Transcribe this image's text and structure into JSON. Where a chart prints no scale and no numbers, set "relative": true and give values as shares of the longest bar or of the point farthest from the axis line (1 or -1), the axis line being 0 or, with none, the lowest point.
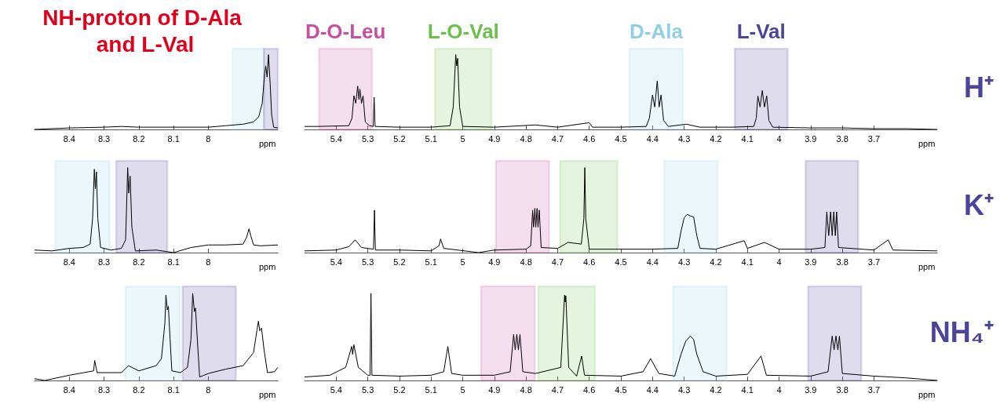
{
  "chart_data": [
    {
      "type": "line",
      "title": "NH-proton of D-Ala and L-Val",
      "xlabel": "ppm",
      "relative": true,
      "xlim": [
        8.5,
        7.8
      ],
      "xticks": [
        8.4,
        8.3,
        8.2,
        8.1,
        8.0
      ],
      "series": [
        {
          "color": "#000000",
          "x": [
            8.5,
            8.4,
            8.3,
            8.25,
            8.2,
            8.1,
            8.0,
            7.95,
            7.9,
            7.87,
            7.855,
            7.845,
            7.838,
            7.835,
            7.831,
            7.827,
            7.822,
            7.818,
            7.812,
            7.8
          ],
          "values": [
            0.0,
            0.02,
            0.03,
            0.04,
            0.03,
            0.03,
            0.03,
            0.05,
            0.07,
            0.1,
            0.17,
            0.35,
            0.75,
            0.85,
            0.7,
            1.0,
            0.6,
            0.2,
            0.03,
            0.02
          ]
        }
      ],
      "bands": [
        {
          "axis": "x",
          "from": 7.93,
          "to": 7.84,
          "color": "#8fd0e6"
        },
        {
          "axis": "x",
          "from": 7.84,
          "to": 7.8,
          "color": "#4b459a"
        }
      ]
    },
    {
      "type": "line",
      "xlabel": "ppm",
      "relative": true,
      "xlim": [
        5.5,
        3.5
      ],
      "xticks": [
        5.4,
        5.3,
        5.2,
        5.1,
        5.0,
        4.9,
        4.8,
        4.7,
        4.6,
        4.5,
        4.4,
        4.3,
        4.2,
        4.1,
        4.0,
        3.9,
        3.8,
        3.7
      ],
      "series": [
        {
          "color": "#000000",
          "x": [
            5.5,
            5.46,
            5.36,
            5.35,
            5.344,
            5.338,
            5.332,
            5.328,
            5.325,
            5.32,
            5.315,
            5.308,
            5.295,
            5.283,
            5.28,
            5.277,
            5.2,
            5.1,
            5.04,
            5.03,
            5.022,
            5.019,
            5.016,
            5.01,
            5.0,
            4.9,
            4.77,
            4.7,
            4.6,
            4.59,
            4.5,
            4.42,
            4.41,
            4.4,
            4.393,
            4.385,
            4.379,
            4.373,
            4.365,
            4.35,
            4.293,
            4.25,
            4.15,
            4.08,
            4.072,
            4.067,
            4.06,
            4.053,
            4.046,
            4.039,
            4.032,
            4.02,
            3.9,
            3.8,
            3.7,
            3.6,
            3.5
          ],
          "values": [
            0.04,
            0.04,
            0.05,
            0.15,
            0.45,
            0.35,
            0.58,
            0.4,
            0.54,
            0.35,
            0.45,
            0.1,
            0.05,
            0.04,
            0.43,
            0.04,
            0.03,
            0.03,
            0.05,
            0.3,
            1.0,
            0.85,
            0.95,
            0.3,
            0.04,
            0.03,
            0.06,
            0.03,
            0.09,
            0.03,
            0.03,
            0.04,
            0.15,
            0.46,
            0.3,
            0.65,
            0.3,
            0.46,
            0.12,
            0.04,
            0.07,
            0.03,
            0.03,
            0.04,
            0.15,
            0.45,
            0.3,
            0.52,
            0.3,
            0.45,
            0.12,
            0.03,
            0.02,
            0.02,
            0.01,
            0.01,
            0.0
          ]
        }
      ],
      "bands": [
        {
          "axis": "x",
          "from": 5.454,
          "to": 5.287,
          "color": "#c8509e",
          "label": "D-O-Leu"
        },
        {
          "axis": "x",
          "from": 5.087,
          "to": 4.909,
          "color": "#6cc04a",
          "label": "L-O-Val"
        },
        {
          "axis": "x",
          "from": 4.473,
          "to": 4.304,
          "color": "#8fd0e6",
          "label": "D-Ala"
        },
        {
          "axis": "x",
          "from": 4.14,
          "to": 3.973,
          "color": "#4b459a",
          "label": "L-Val"
        }
      ],
      "annotations": [
        "H⁺"
      ]
    },
    {
      "type": "line",
      "xlabel": "ppm",
      "relative": true,
      "xlim": [
        8.5,
        7.8
      ],
      "xticks": [
        8.4,
        8.3,
        8.2,
        8.1,
        8.0
      ],
      "series": [
        {
          "color": "#000000",
          "x": [
            8.5,
            8.45,
            8.4,
            8.36,
            8.34,
            8.333,
            8.328,
            8.325,
            8.322,
            8.318,
            8.31,
            8.28,
            8.25,
            8.238,
            8.232,
            8.229,
            8.225,
            8.22,
            8.21,
            8.15,
            8.1,
            8.05,
            8.0,
            7.95,
            7.9,
            7.89,
            7.883,
            7.878,
            7.87,
            7.85,
            7.8
          ],
          "values": [
            0.03,
            0.02,
            0.05,
            0.06,
            0.1,
            0.4,
            0.98,
            0.75,
            0.95,
            0.4,
            0.06,
            0.03,
            0.05,
            0.15,
            1.0,
            0.7,
            0.9,
            0.3,
            0.02,
            0.03,
            0.0,
            0.06,
            0.09,
            0.09,
            0.1,
            0.18,
            0.28,
            0.2,
            0.09,
            0.08,
            0.09
          ]
        }
      ],
      "bands": [
        {
          "axis": "x",
          "from": 8.44,
          "to": 8.284,
          "color": "#8fd0e6"
        },
        {
          "axis": "x",
          "from": 8.265,
          "to": 8.118,
          "color": "#4b459a"
        }
      ]
    },
    {
      "type": "line",
      "xlabel": "ppm",
      "relative": true,
      "xlim": [
        5.5,
        3.5
      ],
      "xticks": [
        5.4,
        5.3,
        5.2,
        5.1,
        5.0,
        4.9,
        4.8,
        4.7,
        4.6,
        4.5,
        4.4,
        4.3,
        4.2,
        4.1,
        4.0,
        3.9,
        3.8,
        3.7
      ],
      "series": [
        {
          "color": "#000000",
          "x": [
            5.5,
            5.4,
            5.36,
            5.34,
            5.32,
            5.282,
            5.279,
            5.276,
            5.2,
            5.1,
            5.075,
            5.07,
            5.06,
            4.95,
            4.9,
            4.8,
            4.785,
            4.779,
            4.776,
            4.772,
            4.769,
            4.765,
            4.762,
            4.758,
            4.752,
            4.7,
            4.667,
            4.625,
            4.617,
            4.614,
            4.611,
            4.6,
            4.5,
            4.4,
            4.32,
            4.31,
            4.3,
            4.29,
            4.28,
            4.27,
            4.26,
            4.25,
            4.2,
            4.11,
            4.1,
            4.046,
            4.0,
            3.9,
            3.855,
            3.849,
            3.843,
            3.837,
            3.832,
            3.827,
            3.822,
            3.818,
            3.812,
            3.7,
            3.655,
            3.64,
            3.5
          ],
          "values": [
            0.02,
            0.03,
            0.07,
            0.15,
            0.06,
            0.04,
            0.5,
            0.03,
            0.03,
            0.02,
            0.08,
            0.16,
            0.05,
            0.0,
            0.03,
            0.04,
            0.08,
            0.5,
            0.3,
            0.52,
            0.3,
            0.52,
            0.3,
            0.5,
            0.06,
            0.05,
            0.12,
            0.1,
            0.4,
            1.0,
            0.4,
            0.04,
            0.04,
            0.04,
            0.05,
            0.25,
            0.41,
            0.45,
            0.43,
            0.42,
            0.2,
            0.05,
            0.04,
            0.14,
            0.05,
            0.12,
            0.04,
            0.04,
            0.06,
            0.48,
            0.2,
            0.48,
            0.2,
            0.48,
            0.2,
            0.48,
            0.06,
            0.03,
            0.15,
            0.03,
            0.02
          ]
        }
      ],
      "bands": [
        {
          "axis": "x",
          "from": 4.895,
          "to": 4.727,
          "color": "#c8509e"
        },
        {
          "axis": "x",
          "from": 4.692,
          "to": 4.511,
          "color": "#6cc04a"
        },
        {
          "axis": "x",
          "from": 4.363,
          "to": 4.194,
          "color": "#8fd0e6"
        },
        {
          "axis": "x",
          "from": 3.916,
          "to": 3.75,
          "color": "#4b459a"
        }
      ],
      "annotations": [
        "K⁺"
      ]
    },
    {
      "type": "line",
      "xlabel": "ppm",
      "relative": true,
      "xlim": [
        8.5,
        7.8
      ],
      "xticks": [
        8.4,
        8.3,
        8.2,
        8.1,
        8.0
      ],
      "series": [
        {
          "color": "#000000",
          "x": [
            8.5,
            8.47,
            8.4,
            8.33,
            8.327,
            8.32,
            8.25,
            8.23,
            8.2,
            8.15,
            8.135,
            8.125,
            8.122,
            8.118,
            8.115,
            8.11,
            8.105,
            8.08,
            8.06,
            8.05,
            8.045,
            8.04,
            8.037,
            8.03,
            8.025,
            8.0,
            7.95,
            7.9,
            7.87,
            7.86,
            7.856,
            7.852,
            7.847,
            7.84,
            7.83,
            7.81,
            7.8
          ],
          "values": [
            0.02,
            0.0,
            0.06,
            0.11,
            0.23,
            0.09,
            0.09,
            0.17,
            0.11,
            0.17,
            0.25,
            0.66,
            0.98,
            0.81,
            0.85,
            0.47,
            0.11,
            0.09,
            0.15,
            0.47,
            1.0,
            0.79,
            0.83,
            0.36,
            0.04,
            0.08,
            0.13,
            0.17,
            0.32,
            0.58,
            0.68,
            0.57,
            0.6,
            0.36,
            0.09,
            0.1,
            0.15
          ]
        }
      ],
      "bands": [
        {
          "axis": "x",
          "from": 8.238,
          "to": 8.082,
          "color": "#8fd0e6"
        },
        {
          "axis": "x",
          "from": 8.074,
          "to": 7.921,
          "color": "#4b459a"
        }
      ]
    },
    {
      "type": "line",
      "xlabel": "ppm",
      "relative": true,
      "xlim": [
        5.5,
        3.5
      ],
      "xticks": [
        5.4,
        5.3,
        5.2,
        5.1,
        5.0,
        4.9,
        4.8,
        4.7,
        4.6,
        4.5,
        4.4,
        4.3,
        4.2,
        4.1,
        4.0,
        3.9,
        3.8,
        3.7
      ],
      "series": [
        {
          "color": "#000000",
          "x": [
            5.5,
            5.42,
            5.37,
            5.351,
            5.348,
            5.344,
            5.33,
            5.3,
            5.293,
            5.29,
            5.287,
            5.2,
            5.1,
            5.06,
            5.047,
            5.035,
            5.0,
            4.9,
            4.85,
            4.839,
            4.834,
            4.829,
            4.824,
            4.819,
            4.81,
            4.77,
            4.69,
            4.678,
            4.676,
            4.674,
            4.665,
            4.64,
            4.624,
            4.615,
            4.5,
            4.43,
            4.406,
            4.38,
            4.33,
            4.31,
            4.295,
            4.28,
            4.27,
            4.26,
            4.24,
            4.2,
            4.1,
            4.057,
            4.04,
            3.9,
            3.845,
            3.832,
            3.826,
            3.82,
            3.814,
            3.809,
            3.8,
            3.7,
            3.6,
            3.5
          ],
          "values": [
            0.04,
            0.06,
            0.15,
            0.39,
            0.3,
            0.41,
            0.15,
            0.06,
            0.06,
            1.0,
            0.06,
            0.05,
            0.06,
            0.1,
            0.39,
            0.08,
            0.06,
            0.06,
            0.1,
            0.53,
            0.35,
            0.53,
            0.35,
            0.53,
            0.1,
            0.08,
            0.15,
            0.98,
            0.9,
            0.97,
            0.15,
            0.05,
            0.28,
            0.06,
            0.05,
            0.1,
            0.25,
            0.08,
            0.05,
            0.3,
            0.45,
            0.51,
            0.47,
            0.3,
            0.1,
            0.05,
            0.07,
            0.28,
            0.06,
            0.05,
            0.1,
            0.51,
            0.35,
            0.51,
            0.35,
            0.51,
            0.08,
            0.05,
            0.03,
            0.0
          ]
        }
      ],
      "bands": [
        {
          "axis": "x",
          "from": 4.942,
          "to": 4.772,
          "color": "#c8509e"
        },
        {
          "axis": "x",
          "from": 4.761,
          "to": 4.582,
          "color": "#6cc04a"
        },
        {
          "axis": "x",
          "from": 4.335,
          "to": 4.166,
          "color": "#8fd0e6"
        },
        {
          "axis": "x",
          "from": 3.908,
          "to": 3.74,
          "color": "#4b459a"
        }
      ],
      "annotations": [
        "NH₄⁺"
      ]
    }
  ]
}
